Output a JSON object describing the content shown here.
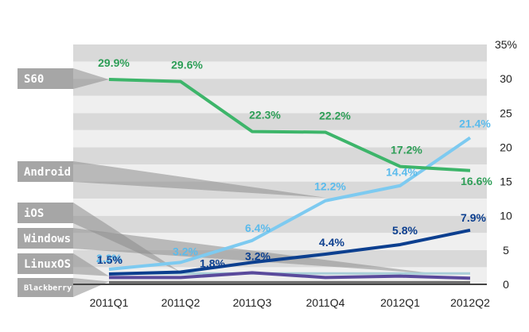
{
  "chart_data": {
    "type": "line",
    "categories": [
      "2011Q1",
      "2011Q2",
      "2011Q3",
      "2011Q4",
      "2012Q1",
      "2012Q2"
    ],
    "ylim": [
      0,
      35
    ],
    "yticks": [
      {
        "value": 0,
        "label": "0"
      },
      {
        "value": 5,
        "label": "5"
      },
      {
        "value": 10,
        "label": "10"
      },
      {
        "value": 15,
        "label": "15"
      },
      {
        "value": 20,
        "label": "20"
      },
      {
        "value": 25,
        "label": "25"
      },
      {
        "value": 30,
        "label": "30"
      },
      {
        "value": 35,
        "label": "35%"
      }
    ],
    "grid": true,
    "legend_placement": "left",
    "series": [
      {
        "name": "S60",
        "color": "#3db56a",
        "values": [
          29.9,
          29.6,
          22.3,
          22.2,
          17.2,
          16.6
        ],
        "labels": [
          "29.9%",
          "29.6%",
          "22.3%",
          "22.2%",
          "17.2%",
          "16.6%"
        ]
      },
      {
        "name": "Android",
        "color": "#7dcaf0",
        "values": [
          2.2,
          3.2,
          6.4,
          12.2,
          14.4,
          21.4
        ],
        "labels": [
          "2.2%",
          "3.2%",
          "6.4%",
          "12.2%",
          "14.4%",
          "21.4%"
        ]
      },
      {
        "name": "iOS",
        "color": "#0c3f8f",
        "values": [
          1.5,
          1.8,
          3.2,
          4.4,
          5.8,
          7.9
        ],
        "labels": [
          "1.5%",
          "1.8%",
          "3.2%",
          "4.4%",
          "5.8%",
          "7.9%"
        ]
      },
      {
        "name": "Windows",
        "color": "#5a4a9c",
        "values": [
          1.0,
          1.0,
          1.7,
          1.0,
          1.2,
          0.9
        ],
        "labels": []
      },
      {
        "name": "LinuxOS",
        "color": "#a9cfd8",
        "values": [
          1.6,
          1.6,
          1.6,
          1.6,
          1.6,
          1.6
        ],
        "labels": []
      },
      {
        "name": "Blackberry",
        "color": "#6b6b6b",
        "values": [
          0.3,
          0.3,
          0.3,
          0.3,
          0.3,
          0.3
        ],
        "labels": []
      }
    ]
  }
}
